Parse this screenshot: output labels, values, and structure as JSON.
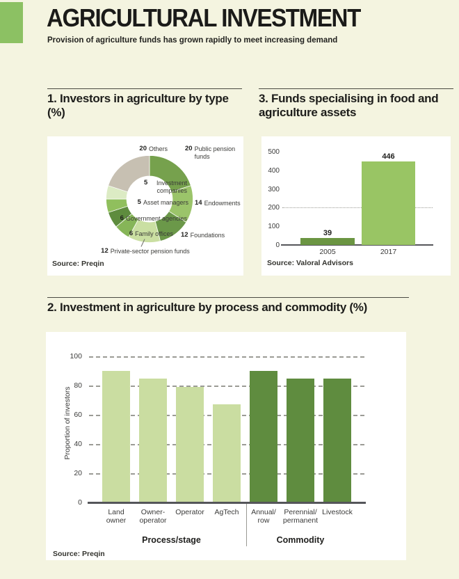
{
  "page": {
    "title": "AGRICULTURAL INVESTMENT",
    "subtitle": "Provision of agriculture funds has grown rapidly to meet increasing demand"
  },
  "colors": {
    "background": "#f4f4e0",
    "accent_green": "#8cc163",
    "panel": "#ffffff",
    "light_bar": "#cadda1",
    "dark_bar": "#5f8c3f",
    "bar_2005": "#6b9542",
    "bar_2017": "#99c564",
    "others_grey": "#c7c0b2"
  },
  "sections": {
    "investors": {
      "heading": "1. Investors in agriculture by type (%)",
      "source": "Source: Preqin"
    },
    "funds": {
      "heading": "3. Funds specialising in food and agriculture assets",
      "source": "Source: Valoral Advisors"
    },
    "process": {
      "heading": "2. Investment in agriculture by process and commodity (%)",
      "source": "Source: Preqin"
    }
  },
  "chart_data": [
    {
      "id": "investors-by-type",
      "type": "pie",
      "donut": true,
      "title": "1. Investors in agriculture by type (%)",
      "start_at_twelve_oclock": true,
      "clockwise": true,
      "slices": [
        {
          "label": "Public pension funds",
          "value": 20,
          "color": "#76a14d"
        },
        {
          "label": "Endowments",
          "value": 14,
          "color": "#9bc46a"
        },
        {
          "label": "Foundations",
          "value": 12,
          "color": "#6b9849"
        },
        {
          "label": "Private-sector pension funds",
          "value": 12,
          "color": "#cadfa2"
        },
        {
          "label": "Family offices",
          "value": 6,
          "color": "#86b558"
        },
        {
          "label": "Government agencies",
          "value": 6,
          "color": "#5e8c3e"
        },
        {
          "label": "Asset managers",
          "value": 5,
          "color": "#90bf5d"
        },
        {
          "label": "Investment companies",
          "value": 5,
          "color": "#dcebc4"
        },
        {
          "label": "Others",
          "value": 20,
          "color": "#c7c0b2"
        }
      ],
      "source": "Source: Preqin"
    },
    {
      "id": "funds-specialising-in-food-and-agriculture",
      "type": "bar",
      "title": "3. Funds specialising in food and agriculture assets",
      "categories": [
        "2005",
        "2017"
      ],
      "values": [
        39,
        446
      ],
      "value_labels": [
        "39",
        "446"
      ],
      "bar_colors": [
        "#6b9542",
        "#99c564"
      ],
      "ylim": [
        0,
        500
      ],
      "yticks": [
        0,
        100,
        200,
        300,
        400,
        500
      ],
      "reference_line": 200,
      "legend": "none",
      "source": "Source: Valoral Advisors"
    },
    {
      "id": "investment-by-process-and-commodity",
      "type": "bar",
      "title": "2. Investment in agriculture by process and commodity (%)",
      "categories": [
        "Land\nowner",
        "Owner-\noperator",
        "Operator",
        "AgTech",
        "Annual/\nrow",
        "Perennial/\npermanent",
        "Livestock"
      ],
      "values": [
        90,
        85,
        79,
        67,
        90,
        85,
        85
      ],
      "bar_group_index": [
        0,
        0,
        0,
        0,
        1,
        1,
        1
      ],
      "groups": [
        {
          "label": "Process/stage"
        },
        {
          "label": "Commodity"
        }
      ],
      "group_colors": [
        "#cadda1",
        "#5f8c3f"
      ],
      "ylabel": "Proportion of investors",
      "ylim": [
        0,
        100
      ],
      "yticks": [
        0,
        20,
        40,
        60,
        80,
        100
      ],
      "grid": "dashed-horizontal",
      "legend": "none",
      "source": "Source: Preqin"
    }
  ]
}
